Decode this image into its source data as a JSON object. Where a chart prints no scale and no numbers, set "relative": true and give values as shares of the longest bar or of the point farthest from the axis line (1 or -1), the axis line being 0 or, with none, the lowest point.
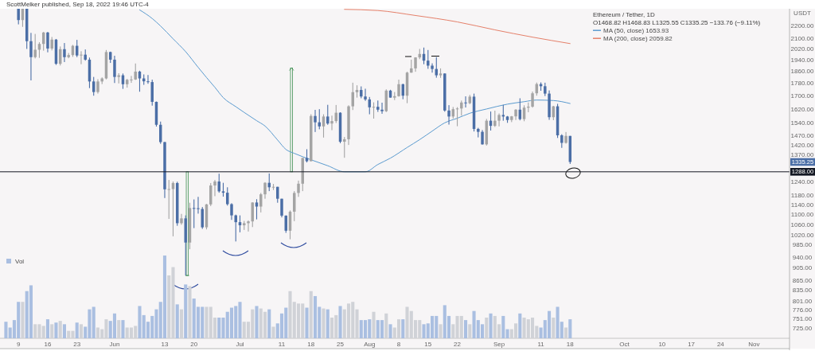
{
  "chart_data": [
    {
      "type": "candlestick",
      "title": "Ethereum / Tether, 1D",
      "subtitle": "O1468.82 H1468.83 L1325.55 C1335.25 −133.76 (−9.11%)",
      "ylabel": "USDT",
      "annotations": [
        "ScottMelker published, Sep 18, 2022 19:46 UTC-4",
        {
          "text": "1335.25",
          "y": 1335.25
        }
      ],
      "x": [
        "2022-05-09",
        "2022-05-10",
        "2022-05-11",
        "2022-05-12",
        "2022-05-13",
        "2022-05-14",
        "2022-05-15",
        "2022-05-16",
        "2022-05-17",
        "2022-05-18",
        "2022-05-19",
        "2022-05-20",
        "2022-05-21",
        "2022-05-22",
        "2022-05-23",
        "2022-05-24",
        "2022-05-25",
        "2022-05-26",
        "2022-05-27",
        "2022-05-28",
        "2022-05-29",
        "2022-05-30",
        "2022-05-31",
        "2022-06-01",
        "2022-06-02",
        "2022-06-03",
        "2022-06-04",
        "2022-06-05",
        "2022-06-06",
        "2022-06-07",
        "2022-06-08",
        "2022-06-09",
        "2022-06-10",
        "2022-06-11",
        "2022-06-12",
        "2022-06-13",
        "2022-06-14",
        "2022-06-15",
        "2022-06-16",
        "2022-06-17",
        "2022-06-18",
        "2022-06-19",
        "2022-06-20",
        "2022-06-21",
        "2022-06-22",
        "2022-06-23",
        "2022-06-24",
        "2022-06-25",
        "2022-06-26",
        "2022-06-27",
        "2022-06-28",
        "2022-06-29",
        "2022-06-30",
        "2022-07-01",
        "2022-07-02",
        "2022-07-03",
        "2022-07-04",
        "2022-07-05",
        "2022-07-06",
        "2022-07-07",
        "2022-07-08",
        "2022-07-09",
        "2022-07-10",
        "2022-07-11",
        "2022-07-12",
        "2022-07-13",
        "2022-07-14",
        "2022-07-15",
        "2022-07-16",
        "2022-07-17",
        "2022-07-18",
        "2022-07-19",
        "2022-07-20",
        "2022-07-21",
        "2022-07-22",
        "2022-07-23",
        "2022-07-24",
        "2022-07-25",
        "2022-07-26",
        "2022-07-27",
        "2022-07-28",
        "2022-07-29",
        "2022-07-30",
        "2022-07-31",
        "2022-08-01",
        "2022-08-02",
        "2022-08-03",
        "2022-08-04",
        "2022-08-05",
        "2022-08-06",
        "2022-08-07",
        "2022-08-08",
        "2022-08-09",
        "2022-08-10",
        "2022-08-11",
        "2022-08-12",
        "2022-08-13",
        "2022-08-14",
        "2022-08-15",
        "2022-08-16",
        "2022-08-17",
        "2022-08-18",
        "2022-08-19",
        "2022-08-20",
        "2022-08-21",
        "2022-08-22",
        "2022-08-23",
        "2022-08-24",
        "2022-08-25",
        "2022-08-26",
        "2022-08-27",
        "2022-08-28",
        "2022-08-29",
        "2022-08-30",
        "2022-08-31",
        "2022-09-01",
        "2022-09-02",
        "2022-09-03",
        "2022-09-04",
        "2022-09-05",
        "2022-09-06",
        "2022-09-07",
        "2022-09-08",
        "2022-09-09",
        "2022-09-10",
        "2022-09-11",
        "2022-09-12",
        "2022-09-13",
        "2022-09-14",
        "2022-09-15",
        "2022-09-16",
        "2022-09-17",
        "2022-09-18"
      ],
      "ohlc": [
        [
          2517,
          2553,
          2210,
          2245
        ],
        [
          2245,
          2455,
          2190,
          2342
        ],
        [
          2342,
          2463,
          2020,
          2078
        ],
        [
          2078,
          2142,
          1800,
          1960
        ],
        [
          1960,
          2134,
          1951,
          2014
        ],
        [
          2014,
          2070,
          1955,
          2057
        ],
        [
          2057,
          2150,
          2007,
          2145
        ],
        [
          2145,
          2150,
          1995,
          2023
        ],
        [
          2023,
          2110,
          2009,
          2090
        ],
        [
          2090,
          2095,
          1905,
          1913
        ],
        [
          1913,
          2038,
          1901,
          2018
        ],
        [
          2018,
          2064,
          1925,
          1960
        ],
        [
          1960,
          1990,
          1952,
          1975
        ],
        [
          1975,
          2050,
          1962,
          2043
        ],
        [
          2043,
          2088,
          1960,
          1972
        ],
        [
          1972,
          2003,
          1910,
          1978
        ],
        [
          1978,
          2016,
          1935,
          1942
        ],
        [
          1942,
          1957,
          1750,
          1793
        ],
        [
          1793,
          1823,
          1702,
          1725
        ],
        [
          1725,
          1808,
          1715,
          1793
        ],
        [
          1793,
          1820,
          1776,
          1813
        ],
        [
          1813,
          2012,
          1807,
          1997
        ],
        [
          1997,
          2000,
          1919,
          1942
        ],
        [
          1942,
          1970,
          1783,
          1823
        ],
        [
          1823,
          1848,
          1780,
          1834
        ],
        [
          1834,
          1846,
          1745,
          1775
        ],
        [
          1775,
          1810,
          1753,
          1804
        ],
        [
          1804,
          1830,
          1784,
          1806
        ],
        [
          1806,
          1915,
          1803,
          1859
        ],
        [
          1859,
          1865,
          1727,
          1813
        ],
        [
          1813,
          1840,
          1771,
          1794
        ],
        [
          1794,
          1836,
          1778,
          1789
        ],
        [
          1789,
          1805,
          1641,
          1664
        ],
        [
          1664,
          1666,
          1520,
          1530
        ],
        [
          1530,
          1548,
          1427,
          1436
        ],
        [
          1436,
          1437,
          1170,
          1208
        ],
        [
          1208,
          1250,
          1084,
          1209
        ],
        [
          1209,
          1243,
          1017,
          1236
        ],
        [
          1236,
          1242,
          1057,
          1067
        ],
        [
          1067,
          1104,
          1061,
          1086
        ],
        [
          1086,
          1098,
          881,
          994
        ],
        [
          994,
          1150,
          970,
          1128
        ],
        [
          1128,
          1164,
          1048,
          1127
        ],
        [
          1127,
          1175,
          1105,
          1124
        ],
        [
          1124,
          1132,
          1045,
          1051
        ],
        [
          1051,
          1145,
          1043,
          1143
        ],
        [
          1143,
          1236,
          1136,
          1225
        ],
        [
          1225,
          1250,
          1178,
          1243
        ],
        [
          1243,
          1279,
          1193,
          1199
        ],
        [
          1199,
          1237,
          1176,
          1193
        ],
        [
          1193,
          1217,
          1138,
          1144
        ],
        [
          1144,
          1148,
          1080,
          1098
        ],
        [
          1098,
          1101,
          998,
          1071
        ],
        [
          1071,
          1098,
          1032,
          1059
        ],
        [
          1059,
          1076,
          1041,
          1067
        ],
        [
          1067,
          1078,
          1035,
          1074
        ],
        [
          1074,
          1152,
          1052,
          1151
        ],
        [
          1151,
          1165,
          1082,
          1134
        ],
        [
          1134,
          1192,
          1110,
          1186
        ],
        [
          1186,
          1240,
          1167,
          1237
        ],
        [
          1237,
          1280,
          1200,
          1217
        ],
        [
          1217,
          1232,
          1205,
          1219
        ],
        [
          1219,
          1219,
          1150,
          1167
        ],
        [
          1167,
          1167,
          1090,
          1097
        ],
        [
          1097,
          1098,
          1030,
          1038
        ],
        [
          1038,
          1118,
          1006,
          1113
        ],
        [
          1113,
          1200,
          1075,
          1192
        ],
        [
          1192,
          1247,
          1175,
          1233
        ],
        [
          1233,
          1355,
          1200,
          1355
        ],
        [
          1355,
          1399,
          1333,
          1339
        ],
        [
          1339,
          1590,
          1338,
          1580
        ],
        [
          1580,
          1616,
          1490,
          1544
        ],
        [
          1544,
          1620,
          1505,
          1521
        ],
        [
          1521,
          1590,
          1460,
          1577
        ],
        [
          1577,
          1646,
          1530,
          1537
        ],
        [
          1537,
          1582,
          1500,
          1551
        ],
        [
          1551,
          1645,
          1540,
          1599
        ],
        [
          1599,
          1602,
          1430,
          1438
        ],
        [
          1438,
          1463,
          1356,
          1451
        ],
        [
          1451,
          1643,
          1421,
          1637
        ],
        [
          1637,
          1785,
          1615,
          1724
        ],
        [
          1724,
          1768,
          1690,
          1738
        ],
        [
          1738,
          1761,
          1686,
          1697
        ],
        [
          1697,
          1746,
          1670,
          1679
        ],
        [
          1679,
          1694,
          1590,
          1631
        ],
        [
          1631,
          1661,
          1565,
          1634
        ],
        [
          1634,
          1672,
          1604,
          1617
        ],
        [
          1617,
          1659,
          1593,
          1608
        ],
        [
          1608,
          1742,
          1603,
          1734
        ],
        [
          1734,
          1739,
          1690,
          1690
        ],
        [
          1690,
          1725,
          1675,
          1699
        ],
        [
          1699,
          1805,
          1696,
          1775
        ],
        [
          1775,
          1778,
          1680,
          1702
        ],
        [
          1702,
          1858,
          1656,
          1852
        ],
        [
          1852,
          1942,
          1851,
          1881
        ],
        [
          1881,
          1959,
          1858,
          1958
        ],
        [
          1958,
          2020,
          1946,
          1983
        ],
        [
          1983,
          2030,
          1910,
          1935
        ],
        [
          1935,
          2012,
          1878,
          1900
        ],
        [
          1900,
          1916,
          1852,
          1877
        ],
        [
          1877,
          1960,
          1818,
          1834
        ],
        [
          1834,
          1881,
          1817,
          1846
        ],
        [
          1846,
          1847,
          1605,
          1612
        ],
        [
          1612,
          1644,
          1531,
          1577
        ],
        [
          1577,
          1633,
          1565,
          1620
        ],
        [
          1620,
          1632,
          1522,
          1624
        ],
        [
          1624,
          1672,
          1582,
          1660
        ],
        [
          1660,
          1698,
          1630,
          1656
        ],
        [
          1656,
          1707,
          1650,
          1696
        ],
        [
          1696,
          1715,
          1493,
          1507
        ],
        [
          1507,
          1513,
          1461,
          1491
        ],
        [
          1491,
          1501,
          1423,
          1424
        ],
        [
          1424,
          1563,
          1418,
          1553
        ],
        [
          1553,
          1606,
          1498,
          1524
        ],
        [
          1524,
          1611,
          1518,
          1553
        ],
        [
          1553,
          1595,
          1521,
          1586
        ],
        [
          1586,
          1646,
          1553,
          1577
        ],
        [
          1577,
          1580,
          1541,
          1557
        ],
        [
          1557,
          1580,
          1545,
          1578
        ],
        [
          1578,
          1620,
          1557,
          1617
        ],
        [
          1617,
          1686,
          1555,
          1562
        ],
        [
          1562,
          1643,
          1550,
          1629
        ],
        [
          1629,
          1660,
          1602,
          1635
        ],
        [
          1635,
          1728,
          1629,
          1717
        ],
        [
          1717,
          1786,
          1702,
          1776
        ],
        [
          1776,
          1787,
          1733,
          1762
        ],
        [
          1762,
          1785,
          1700,
          1715
        ],
        [
          1715,
          1735,
          1558,
          1573
        ],
        [
          1573,
          1640,
          1556,
          1637
        ],
        [
          1637,
          1652,
          1458,
          1472
        ],
        [
          1472,
          1478,
          1406,
          1432
        ],
        [
          1432,
          1490,
          1428,
          1469
        ],
        [
          1468.82,
          1468.83,
          1325.55,
          1335.25
        ]
      ],
      "colors": [
        "#4b6ea6",
        "#a4a4a4",
        "#4b6ea6",
        "#4b6ea6",
        "#a4a4a4",
        "#a4a4a4",
        "#a4a4a4",
        "#4b6ea6",
        "#a4a4a4",
        "#4b6ea6",
        "#a4a4a4",
        "#4b6ea6",
        "#a4a4a4",
        "#a4a4a4",
        "#4b6ea6",
        "#a4a4a4",
        "#4b6ea6",
        "#4b6ea6",
        "#4b6ea6",
        "#a4a4a4",
        "#a4a4a4",
        "#a4a4a4",
        "#4b6ea6",
        "#4b6ea6",
        "#a4a4a4",
        "#4b6ea6",
        "#a4a4a4",
        "#a4a4a4",
        "#a4a4a4",
        "#4b6ea6",
        "#4b6ea6",
        "#4b6ea6",
        "#4b6ea6",
        "#4b6ea6",
        "#4b6ea6",
        "#4b6ea6",
        "#a4a4a4",
        "#a4a4a4",
        "#4b6ea6",
        "#a4a4a4",
        "#4b6ea6",
        "#a4a4a4",
        "#4b6ea6",
        "#4b6ea6",
        "#4b6ea6",
        "#a4a4a4",
        "#a4a4a4",
        "#a4a4a4",
        "#4b6ea6",
        "#4b6ea6",
        "#4b6ea6",
        "#4b6ea6",
        "#4b6ea6",
        "#4b6ea6",
        "#a4a4a4",
        "#a4a4a4",
        "#a4a4a4",
        "#4b6ea6",
        "#a4a4a4",
        "#a4a4a4",
        "#4b6ea6",
        "#a4a4a4",
        "#4b6ea6",
        "#4b6ea6",
        "#4b6ea6",
        "#a4a4a4",
        "#a4a4a4",
        "#a4a4a4",
        "#a4a4a4",
        "#4b6ea6",
        "#a4a4a4",
        "#4b6ea6",
        "#4b6ea6",
        "#a4a4a4",
        "#4b6ea6",
        "#a4a4a4",
        "#a4a4a4",
        "#4b6ea6",
        "#a4a4a4",
        "#a4a4a4",
        "#a4a4a4",
        "#a4a4a4",
        "#4b6ea6",
        "#4b6ea6",
        "#4b6ea6",
        "#a4a4a4",
        "#4b6ea6",
        "#4b6ea6",
        "#a4a4a4",
        "#4b6ea6",
        "#a4a4a4",
        "#a4a4a4",
        "#4b6ea6",
        "#a4a4a4",
        "#a4a4a4",
        "#a4a4a4",
        "#a4a4a4",
        "#4b6ea6",
        "#4b6ea6",
        "#4b6ea6",
        "#4b6ea6",
        "#a4a4a4",
        "#4b6ea6",
        "#4b6ea6",
        "#a4a4a4",
        "#a4a4a4",
        "#a4a4a4",
        "#4b6ea6",
        "#a4a4a4",
        "#4b6ea6",
        "#4b6ea6",
        "#4b6ea6",
        "#a4a4a4",
        "#4b6ea6",
        "#a4a4a4",
        "#a4a4a4",
        "#4b6ea6",
        "#4b6ea6",
        "#a4a4a4",
        "#a4a4a4",
        "#4b6ea6",
        "#a4a4a4",
        "#a4a4a4",
        "#a4a4a4",
        "#a4a4a4",
        "#4b6ea6",
        "#4b6ea6",
        "#4b6ea6",
        "#a4a4a4",
        "#4b6ea6",
        "#4b6ea6",
        "#a4a4a4",
        "#4b6ea6"
      ],
      "series": [
        {
          "name": "MA (50, close) 1653.93",
          "type": "line",
          "color": "#5b9bcf",
          "x": [
            "2022-06-07",
            "2022-06-10",
            "2022-06-12",
            "2022-06-15",
            "2022-06-18",
            "2022-06-21",
            "2022-06-23",
            "2022-06-25",
            "2022-06-27",
            "2022-06-30",
            "2022-07-02",
            "2022-07-05",
            "2022-07-07",
            "2022-07-10",
            "2022-07-12",
            "2022-07-14",
            "2022-07-18",
            "2022-07-22",
            "2022-07-26",
            "2022-07-31",
            "2022-08-03",
            "2022-08-06",
            "2022-08-10",
            "2022-08-13",
            "2022-08-16",
            "2022-08-19",
            "2022-08-22",
            "2022-08-25",
            "2022-08-29",
            "2022-09-03",
            "2022-09-07",
            "2022-09-10",
            "2022-09-14",
            "2022-09-18"
          ],
          "values": [
            2330,
            2258,
            2197,
            2096,
            2000,
            1888,
            1819,
            1755,
            1690,
            1635,
            1601,
            1553,
            1523,
            1447,
            1398,
            1378,
            1346,
            1317,
            1288,
            1288,
            1323,
            1354,
            1408,
            1449,
            1495,
            1541,
            1567,
            1596,
            1621,
            1650,
            1665,
            1675,
            1672,
            1653.93
          ]
        },
        {
          "name": "MA (200, close) 2059.82",
          "type": "line",
          "color": "#e5806a",
          "x": [
            "2022-07-26",
            "2022-08-03",
            "2022-08-12",
            "2022-08-22",
            "2022-08-31",
            "2022-09-09",
            "2022-09-18"
          ],
          "values": [
            2335,
            2325,
            2283,
            2230,
            2166,
            2109,
            2059.82
          ]
        }
      ],
      "xlim": [
        "2022-05-04T14:00",
        "2022-11-09T12:00"
      ],
      "xticks": [
        {
          "value": "2022-05-09",
          "label": "9"
        },
        {
          "value": "2022-05-16",
          "label": "16"
        },
        {
          "value": "2022-05-23",
          "label": "23"
        },
        {
          "value": "2022-06-01",
          "label": "Jun"
        },
        {
          "value": "2022-06-13",
          "label": "13"
        },
        {
          "value": "2022-06-20",
          "label": "20"
        },
        {
          "value": "2022-07-01",
          "label": "Jul"
        },
        {
          "value": "2022-07-11",
          "label": "11"
        },
        {
          "value": "2022-07-18",
          "label": "18"
        },
        {
          "value": "2022-07-25",
          "label": "25"
        },
        {
          "value": "2022-08-01",
          "label": "Aug"
        },
        {
          "value": "2022-08-08",
          "label": "8"
        },
        {
          "value": "2022-08-15",
          "label": "15"
        },
        {
          "value": "2022-08-22",
          "label": "22"
        },
        {
          "value": "2022-09-01",
          "label": "Sep"
        },
        {
          "value": "2022-09-11",
          "label": "11"
        },
        {
          "value": "2022-09-18",
          "label": "18"
        },
        {
          "value": "2022-10-01",
          "label": "Oct"
        },
        {
          "value": "2022-10-10",
          "label": "10"
        },
        {
          "value": "2022-10-17",
          "label": "17"
        },
        {
          "value": "2022-10-24",
          "label": "24"
        },
        {
          "value": "2022-11-01",
          "label": "Nov"
        }
      ],
      "ylim": [
        700,
        2340
      ],
      "yticks": [
        {
          "value": 2200,
          "label": "2200.00"
        },
        {
          "value": 2100,
          "label": "2100.00"
        },
        {
          "value": 2020,
          "label": "2020.00"
        },
        {
          "value": 1940,
          "label": "1940.00"
        },
        {
          "value": 1860,
          "label": "1860.00"
        },
        {
          "value": 1780,
          "label": "1780.00"
        },
        {
          "value": 1700,
          "label": "1700.00"
        },
        {
          "value": 1620,
          "label": "1620.00"
        },
        {
          "value": 1540,
          "label": "1540.00"
        },
        {
          "value": 1470,
          "label": "1470.00"
        },
        {
          "value": 1420,
          "label": "1420.00"
        },
        {
          "value": 1370,
          "label": "1370.00"
        },
        {
          "value": 1240,
          "label": "1240.00"
        },
        {
          "value": 1180,
          "label": "1180.00"
        },
        {
          "value": 1140,
          "label": "1140.00"
        },
        {
          "value": 1100,
          "label": "1100.00"
        },
        {
          "value": 1060,
          "label": "1060.00"
        },
        {
          "value": 1020,
          "label": "1020.00"
        },
        {
          "value": 985,
          "label": "985.00"
        },
        {
          "value": 940,
          "label": "940.00"
        },
        {
          "value": 905,
          "label": "905.00"
        },
        {
          "value": 865,
          "label": "865.00"
        },
        {
          "value": 835,
          "label": "835.00"
        },
        {
          "value": 801,
          "label": "801.00"
        },
        {
          "value": 776,
          "label": "776.00"
        },
        {
          "value": 751,
          "label": "751.00"
        },
        {
          "value": 725,
          "label": "725.00"
        }
      ],
      "log": true,
      "legend": "top right",
      "ref_lines": [
        {
          "axis": "y",
          "value": 1288,
          "label": "1288.00",
          "color": "#131722"
        }
      ]
    },
    {
      "type": "bar",
      "relative": true,
      "tick_labels": false,
      "legend": "top left",
      "x": [
        "2022-05-06",
        "2022-05-07",
        "2022-05-08",
        "2022-05-09",
        "2022-05-10",
        "2022-05-11",
        "2022-05-12",
        "2022-05-13",
        "2022-05-14",
        "2022-05-15",
        "2022-05-16",
        "2022-05-17",
        "2022-05-18",
        "2022-05-19",
        "2022-05-20",
        "2022-05-21",
        "2022-05-22",
        "2022-05-23",
        "2022-05-24",
        "2022-05-25",
        "2022-05-26",
        "2022-05-27",
        "2022-05-28",
        "2022-05-29",
        "2022-05-30",
        "2022-05-31",
        "2022-06-01",
        "2022-06-02",
        "2022-06-03",
        "2022-06-04",
        "2022-06-05",
        "2022-06-06",
        "2022-06-07",
        "2022-06-08",
        "2022-06-09",
        "2022-06-10",
        "2022-06-11",
        "2022-06-12",
        "2022-06-13",
        "2022-06-14",
        "2022-06-15",
        "2022-06-16",
        "2022-06-17",
        "2022-06-18",
        "2022-06-19",
        "2022-06-20",
        "2022-06-21",
        "2022-06-22",
        "2022-06-23",
        "2022-06-24",
        "2022-06-25",
        "2022-06-26",
        "2022-06-27",
        "2022-06-28",
        "2022-06-29",
        "2022-06-30",
        "2022-07-01",
        "2022-07-02",
        "2022-07-03",
        "2022-07-04",
        "2022-07-05",
        "2022-07-06",
        "2022-07-07",
        "2022-07-08",
        "2022-07-09",
        "2022-07-10",
        "2022-07-11",
        "2022-07-12",
        "2022-07-13",
        "2022-07-14",
        "2022-07-15",
        "2022-07-16",
        "2022-07-17",
        "2022-07-18",
        "2022-07-19",
        "2022-07-20",
        "2022-07-21",
        "2022-07-22",
        "2022-07-23",
        "2022-07-24",
        "2022-07-25",
        "2022-07-26",
        "2022-07-27",
        "2022-07-28",
        "2022-07-29",
        "2022-07-30",
        "2022-07-31",
        "2022-08-01",
        "2022-08-02",
        "2022-08-03",
        "2022-08-04",
        "2022-08-05",
        "2022-08-06",
        "2022-08-07",
        "2022-08-08",
        "2022-08-09",
        "2022-08-10",
        "2022-08-11",
        "2022-08-12",
        "2022-08-13",
        "2022-08-14",
        "2022-08-15",
        "2022-08-16",
        "2022-08-17",
        "2022-08-18",
        "2022-08-19",
        "2022-08-20",
        "2022-08-21",
        "2022-08-22",
        "2022-08-23",
        "2022-08-24",
        "2022-08-25",
        "2022-08-26",
        "2022-08-27",
        "2022-08-28",
        "2022-08-29",
        "2022-08-30",
        "2022-08-31",
        "2022-09-01",
        "2022-09-02",
        "2022-09-03",
        "2022-09-04",
        "2022-09-05",
        "2022-09-06",
        "2022-09-07",
        "2022-09-08",
        "2022-09-09",
        "2022-09-10",
        "2022-09-11",
        "2022-09-12",
        "2022-09-13",
        "2022-09-14",
        "2022-09-15",
        "2022-09-16",
        "2022-09-17",
        "2022-09-18"
      ],
      "xlim": [
        "2022-05-04T14:00",
        "2022-11-09T12:00"
      ],
      "series": [
        {
          "name": "Vol",
          "color": "#aabfe1",
          "values": [
            0.2,
            0.13,
            0.22,
            0.44,
            0.44,
            0.57,
            0.64,
            0.17,
            0.17,
            0.15,
            0.23,
            0.17,
            0.19,
            0.21,
            0.17,
            0.09,
            0.09,
            0.19,
            0.17,
            0.14,
            0.35,
            0.38,
            0.13,
            0.11,
            0.23,
            0.21,
            0.3,
            0.22,
            0.22,
            0.13,
            0.13,
            0.15,
            0.39,
            0.28,
            0.2,
            0.27,
            0.35,
            0.44,
            1,
            0.76,
            0.86,
            0.41,
            0.35,
            0.65,
            0.63,
            0.48,
            0.38,
            0.38,
            0.38,
            0.38,
            0.25,
            0.25,
            0.25,
            0.32,
            0.37,
            0.39,
            0.44,
            0.2,
            0.2,
            0.35,
            0.39,
            0.36,
            0.32,
            0.35,
            0.14,
            0.18,
            0.3,
            0.37,
            0.57,
            0.44,
            0.42,
            0.42,
            0.37,
            0.57,
            0.51,
            0.38,
            0.36,
            0.35,
            0.25,
            0.28,
            0.39,
            0.35,
            0.42,
            0.44,
            0.35,
            0.22,
            0.22,
            0.23,
            0.32,
            0.22,
            0.22,
            0.3,
            0.17,
            0.13,
            0.23,
            0.23,
            0.38,
            0.33,
            0.22,
            0.22,
            0.17,
            0.18,
            0.27,
            0.27,
            0.17,
            0.4,
            0.27,
            0.17,
            0.27,
            0.27,
            0.22,
            0.17,
            0.33,
            0.22,
            0.17,
            0.25,
            0.3,
            0.27,
            0.17,
            0.27,
            0.11,
            0.11,
            0.18,
            0.3,
            0.25,
            0.23,
            0.25,
            0.15,
            0.13,
            0.22,
            0.33,
            0.25,
            0.38,
            0.2,
            0.13,
            0.23
          ],
          "colors": [
            "#aabfe1",
            "#aabfe1",
            "#aabfe1",
            "#aabfe1",
            "#d0d2d7",
            "#aabfe1",
            "#aabfe1",
            "#d0d2d7",
            "#d0d2d7",
            "#d0d2d7",
            "#aabfe1",
            "#d0d2d7",
            "#aabfe1",
            "#d0d2d7",
            "#aabfe1",
            "#d0d2d7",
            "#d0d2d7",
            "#aabfe1",
            "#d0d2d7",
            "#aabfe1",
            "#aabfe1",
            "#aabfe1",
            "#d0d2d7",
            "#d0d2d7",
            "#d0d2d7",
            "#aabfe1",
            "#aabfe1",
            "#d0d2d7",
            "#aabfe1",
            "#d0d2d7",
            "#d0d2d7",
            "#d0d2d7",
            "#aabfe1",
            "#aabfe1",
            "#aabfe1",
            "#aabfe1",
            "#aabfe1",
            "#aabfe1",
            "#aabfe1",
            "#d0d2d7",
            "#d0d2d7",
            "#aabfe1",
            "#d0d2d7",
            "#aabfe1",
            "#d0d2d7",
            "#aabfe1",
            "#aabfe1",
            "#aabfe1",
            "#d0d2d7",
            "#d0d2d7",
            "#d0d2d7",
            "#aabfe1",
            "#aabfe1",
            "#aabfe1",
            "#aabfe1",
            "#aabfe1",
            "#aabfe1",
            "#d0d2d7",
            "#d0d2d7",
            "#d0d2d7",
            "#aabfe1",
            "#d0d2d7",
            "#d0d2d7",
            "#aabfe1",
            "#d0d2d7",
            "#aabfe1",
            "#aabfe1",
            "#aabfe1",
            "#d0d2d7",
            "#d0d2d7",
            "#d0d2d7",
            "#d0d2d7",
            "#aabfe1",
            "#d0d2d7",
            "#aabfe1",
            "#aabfe1",
            "#d0d2d7",
            "#aabfe1",
            "#d0d2d7",
            "#d0d2d7",
            "#aabfe1",
            "#d0d2d7",
            "#d0d2d7",
            "#d0d2d7",
            "#d0d2d7",
            "#aabfe1",
            "#aabfe1",
            "#aabfe1",
            "#d0d2d7",
            "#aabfe1",
            "#aabfe1",
            "#d0d2d7",
            "#aabfe1",
            "#d0d2d7",
            "#d0d2d7",
            "#aabfe1",
            "#d0d2d7",
            "#d0d2d7",
            "#d0d2d7",
            "#d0d2d7",
            "#aabfe1",
            "#aabfe1",
            "#aabfe1",
            "#aabfe1",
            "#d0d2d7",
            "#aabfe1",
            "#aabfe1",
            "#d0d2d7",
            "#d0d2d7",
            "#d0d2d7",
            "#aabfe1",
            "#d0d2d7",
            "#aabfe1",
            "#aabfe1",
            "#aabfe1",
            "#d0d2d7",
            "#aabfe1",
            "#d0d2d7",
            "#d0d2d7",
            "#aabfe1",
            "#aabfe1",
            "#d0d2d7",
            "#d0d2d7",
            "#aabfe1",
            "#d0d2d7",
            "#d0d2d7",
            "#d0d2d7",
            "#d0d2d7",
            "#aabfe1",
            "#aabfe1",
            "#aabfe1",
            "#d0d2d7",
            "#aabfe1",
            "#aabfe1",
            "#d0d2d7",
            "#aabfe1"
          ]
        }
      ]
    }
  ]
}
